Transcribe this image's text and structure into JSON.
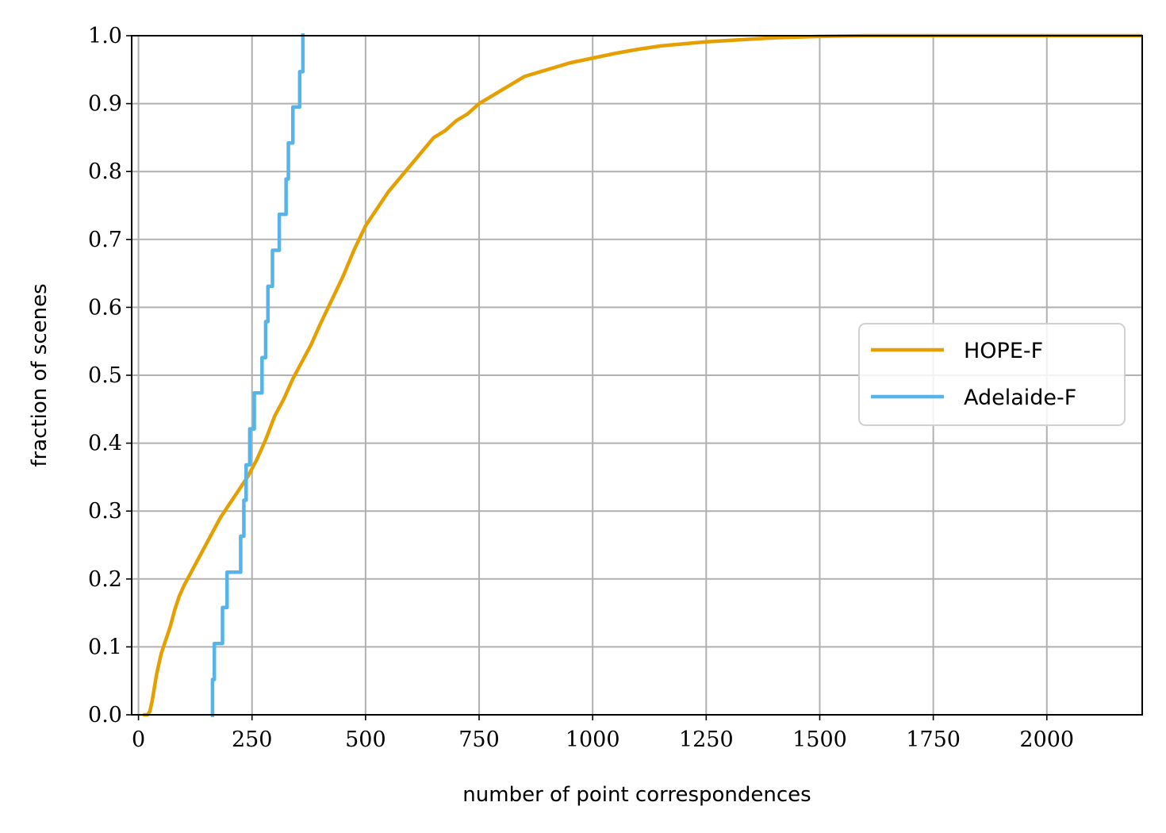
{
  "chart_data": {
    "type": "line",
    "title": "",
    "xlabel": "number of point correspondences",
    "ylabel": "fraction of scenes",
    "xlim": [
      -15,
      2210
    ],
    "ylim": [
      0.0,
      1.0
    ],
    "xticks": [
      0,
      250,
      500,
      750,
      1000,
      1250,
      1500,
      1750,
      2000
    ],
    "xtick_labels": [
      "0",
      "250",
      "500",
      "750",
      "1000",
      "1250",
      "1500",
      "1750",
      "2000"
    ],
    "yticks": [
      0.0,
      0.1,
      0.2,
      0.3,
      0.4,
      0.5,
      0.6,
      0.7,
      0.8,
      0.9,
      1.0
    ],
    "ytick_labels": [
      "0.0",
      "0.1",
      "0.2",
      "0.3",
      "0.4",
      "0.5",
      "0.6",
      "0.7",
      "0.8",
      "0.9",
      "1.0"
    ],
    "grid": true,
    "legend_position": "center-right",
    "series": [
      {
        "name": "HOPE-F",
        "color": "#E69F00",
        "step": false,
        "x": [
          10,
          20,
          25,
          30,
          40,
          50,
          60,
          70,
          80,
          90,
          100,
          120,
          140,
          160,
          180,
          200,
          220,
          240,
          260,
          280,
          300,
          320,
          340,
          360,
          380,
          400,
          425,
          450,
          475,
          500,
          525,
          550,
          575,
          600,
          625,
          650,
          675,
          700,
          725,
          750,
          775,
          800,
          825,
          850,
          875,
          900,
          950,
          1000,
          1050,
          1100,
          1150,
          1200,
          1250,
          1300,
          1350,
          1400,
          1450,
          1500,
          1600,
          1700,
          1800,
          2000,
          2210
        ],
        "y": [
          0.0,
          0.0,
          0.005,
          0.02,
          0.06,
          0.09,
          0.11,
          0.13,
          0.155,
          0.175,
          0.19,
          0.215,
          0.24,
          0.265,
          0.29,
          0.31,
          0.33,
          0.35,
          0.375,
          0.405,
          0.44,
          0.465,
          0.495,
          0.52,
          0.545,
          0.575,
          0.61,
          0.645,
          0.685,
          0.72,
          0.745,
          0.77,
          0.79,
          0.81,
          0.83,
          0.85,
          0.86,
          0.875,
          0.885,
          0.9,
          0.91,
          0.92,
          0.93,
          0.94,
          0.945,
          0.95,
          0.96,
          0.967,
          0.974,
          0.98,
          0.985,
          0.988,
          0.991,
          0.993,
          0.995,
          0.997,
          0.998,
          0.999,
          1.0,
          1.0,
          1.0,
          1.0,
          1.0
        ]
      },
      {
        "name": "Adelaide-F",
        "color": "#56B4E9",
        "step": true,
        "x": [
          163,
          163,
          167,
          185,
          195,
          225,
          232,
          237,
          245,
          255,
          272,
          280,
          285,
          295,
          310,
          325,
          330,
          340,
          355,
          362
        ],
        "y": [
          0.0,
          0.052,
          0.105,
          0.158,
          0.21,
          0.263,
          0.316,
          0.368,
          0.421,
          0.474,
          0.526,
          0.579,
          0.631,
          0.684,
          0.737,
          0.789,
          0.842,
          0.895,
          0.947,
          1.0
        ]
      }
    ]
  }
}
